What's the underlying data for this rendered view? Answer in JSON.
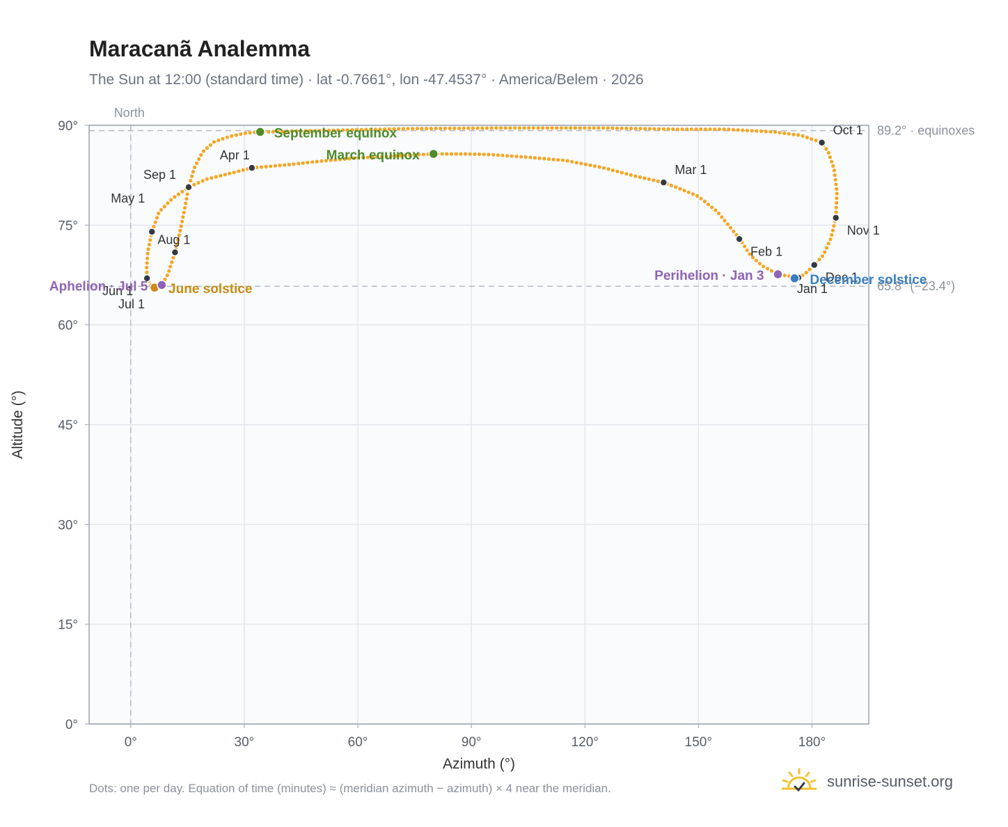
{
  "header": {
    "title": "Maracanã Analemma",
    "subtitle": "The Sun at 12:00 (standard time) · lat -0.7661°, lon -47.4537° · America/Belem · 2026"
  },
  "footer": {
    "note": "Dots: one per day. Equation of time (minutes) ≈ (meridian azimuth − azimuth) × 4 near the meridian.",
    "brand": "sunrise-sunset.org",
    "brand_icon": "sun-icon"
  },
  "chart_data": {
    "type": "scatter",
    "xlabel": "Azimuth (°)",
    "ylabel": "Altitude (°)",
    "xlim": [
      -11,
      195
    ],
    "ylim": [
      0,
      90
    ],
    "xticks": [
      0,
      30,
      60,
      90,
      120,
      150,
      180
    ],
    "xtick_labels": [
      "0°",
      "30°",
      "60°",
      "90°",
      "120°",
      "150°",
      "180°"
    ],
    "yticks": [
      0,
      15,
      30,
      45,
      60,
      75,
      90
    ],
    "ytick_labels": [
      "0°",
      "15°",
      "30°",
      "45°",
      "60°",
      "75°",
      "90°"
    ],
    "grid": true,
    "north_line": {
      "x": 0,
      "label": "North"
    },
    "reference_lines": [
      {
        "y": 89.2,
        "label": "89.2° · equinoxes"
      },
      {
        "y": 65.8,
        "label": "65.8° (−23.4°)"
      }
    ],
    "series_color": "#f5a623",
    "path_points": [
      [
        176.4,
        67.1
      ],
      [
        171.0,
        67.6
      ],
      [
        166.8,
        68.9
      ],
      [
        163.8,
        70.4
      ],
      [
        160.8,
        73.0
      ],
      [
        155.0,
        77.0
      ],
      [
        150.0,
        79.3
      ],
      [
        145.0,
        80.5
      ],
      [
        140.8,
        81.4
      ],
      [
        133.0,
        82.4
      ],
      [
        125.0,
        83.6
      ],
      [
        115.0,
        84.7
      ],
      [
        105.0,
        85.2
      ],
      [
        95.0,
        85.6
      ],
      [
        88.0,
        85.7
      ],
      [
        80.0,
        85.7
      ],
      [
        70.0,
        85.4
      ],
      [
        60.0,
        85.1
      ],
      [
        50.0,
        84.6
      ],
      [
        42.0,
        84.1
      ],
      [
        32.0,
        83.6
      ],
      [
        25.0,
        82.6
      ],
      [
        20.0,
        81.9
      ],
      [
        15.3,
        80.7
      ],
      [
        11.0,
        79.0
      ],
      [
        7.5,
        77.0
      ],
      [
        5.6,
        74.0
      ],
      [
        4.5,
        71.0
      ],
      [
        4.2,
        68.5
      ],
      [
        4.3,
        67.0
      ],
      [
        5.2,
        66.1
      ],
      [
        6.3,
        65.6
      ],
      [
        7.4,
        65.7
      ],
      [
        8.2,
        66.0
      ],
      [
        9.8,
        67.6
      ],
      [
        11.7,
        70.9
      ],
      [
        13.0,
        74.0
      ],
      [
        14.3,
        77.6
      ],
      [
        15.3,
        80.7
      ],
      [
        16.8,
        83.6
      ],
      [
        19.0,
        86.0
      ],
      [
        22.0,
        87.5
      ],
      [
        26.0,
        88.3
      ],
      [
        30.0,
        88.8
      ],
      [
        34.2,
        89.0
      ],
      [
        50.0,
        89.2
      ],
      [
        73.0,
        89.5
      ],
      [
        100.0,
        89.6
      ],
      [
        125.0,
        89.6
      ],
      [
        145.0,
        89.4
      ],
      [
        157.0,
        89.4
      ],
      [
        170.0,
        89.0
      ],
      [
        177.0,
        88.5
      ],
      [
        182.6,
        87.4
      ],
      [
        184.3,
        86.0
      ],
      [
        185.8,
        83.5
      ],
      [
        186.6,
        80.0
      ],
      [
        186.3,
        76.1
      ],
      [
        185.0,
        73.0
      ],
      [
        183.0,
        70.5
      ],
      [
        180.6,
        69.0
      ],
      [
        178.0,
        67.6
      ],
      [
        176.4,
        67.1
      ]
    ],
    "month_markers": [
      {
        "label": "Jan 1",
        "x": 176.4,
        "y": 67.1
      },
      {
        "label": "Feb 1",
        "x": 160.8,
        "y": 72.9
      },
      {
        "label": "Mar 1",
        "x": 140.8,
        "y": 81.4
      },
      {
        "label": "Apr 1",
        "x": 32.0,
        "y": 83.6
      },
      {
        "label": "May 1",
        "x": 5.6,
        "y": 74.0
      },
      {
        "label": "Jun 1",
        "x": 4.3,
        "y": 67.0
      },
      {
        "label": "Jul 1",
        "x": 6.3,
        "y": 65.6
      },
      {
        "label": "Aug 1",
        "x": 11.7,
        "y": 70.9
      },
      {
        "label": "Sep 1",
        "x": 15.3,
        "y": 80.7
      },
      {
        "label": "Oct 1",
        "x": 182.6,
        "y": 87.4
      },
      {
        "label": "Nov 1",
        "x": 186.3,
        "y": 76.1
      },
      {
        "label": "Dec 1",
        "x": 180.6,
        "y": 69.0
      }
    ],
    "events": [
      {
        "label": "September equinox",
        "x": 34.2,
        "y": 89.0,
        "color": "#4f8a2b"
      },
      {
        "label": "March equinox",
        "x": 80.0,
        "y": 85.7,
        "color": "#4f8a2b"
      },
      {
        "label": "June solstice",
        "x": 6.3,
        "y": 65.6,
        "color": "#c98b12"
      },
      {
        "label": "December solstice",
        "x": 175.4,
        "y": 67.0,
        "color": "#3a7ebf"
      },
      {
        "label": "Aphelion · Jul 5",
        "x": 8.2,
        "y": 66.0,
        "color": "#8e63b5"
      },
      {
        "label": "Perihelion · Jan 3",
        "x": 171.0,
        "y": 67.6,
        "color": "#8e63b5"
      }
    ]
  }
}
